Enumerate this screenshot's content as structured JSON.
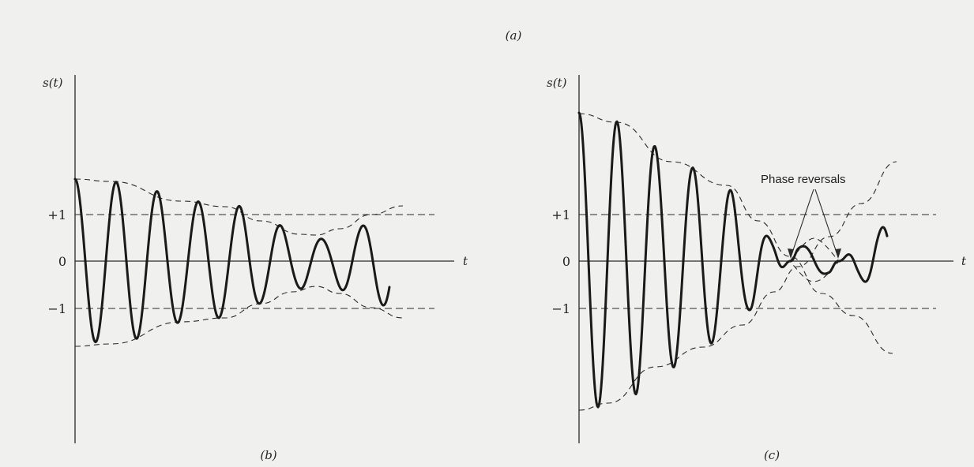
{
  "figure": {
    "caption_a": "(a)"
  },
  "panel_b": {
    "y_axis_label": "s(t)",
    "x_axis_label": "t",
    "tick_plus1": "+1",
    "tick_zero": "0",
    "tick_minus1": "−1",
    "caption": "(b)"
  },
  "panel_c": {
    "y_axis_label": "s(t)",
    "x_axis_label": "t",
    "tick_plus1": "+1",
    "tick_zero": "0",
    "tick_minus1": "−1",
    "annotation": "Phase reversals",
    "caption": "(c)"
  }
}
